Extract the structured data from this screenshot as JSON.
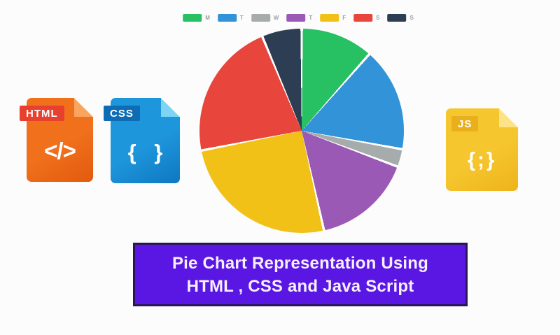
{
  "banner": {
    "line1": "Pie Chart Representation Using",
    "line2": "HTML , CSS and Java Script",
    "background": "#5a17e4",
    "border_color": "#2a1657",
    "text_color": "#f6f0fd"
  },
  "file_icons": [
    {
      "id": "html",
      "badge": "HTML",
      "glyph": "</>",
      "body_color": "#f0701c",
      "body_dark": "#e25a0e",
      "fold_color": "#f9a55e",
      "badge_color": "#e8402e",
      "badge_text_color": "#ffffff"
    },
    {
      "id": "css",
      "badge": "CSS",
      "glyph": "{ }",
      "body_color": "#1e96dc",
      "body_dark": "#0e77c0",
      "fold_color": "#7fd4f4",
      "badge_color": "#0d6cb4",
      "badge_text_color": "#ffffff"
    },
    {
      "id": "js",
      "badge": "JS",
      "glyph": "{;}",
      "body_color": "#f6c62f",
      "body_dark": "#eeb31b",
      "fold_color": "#fce388",
      "badge_color": "#e9af1d",
      "badge_text_color": "#ffffff"
    }
  ],
  "chart_data": {
    "type": "pie",
    "categories": [
      "M",
      "T",
      "W",
      "T",
      "F",
      "S",
      "S"
    ],
    "values": [
      11.5,
      16.4,
      2.8,
      15.8,
      25.4,
      21.8,
      6.3
    ],
    "colors": [
      "#27c062",
      "#3293d8",
      "#a6acac",
      "#9b59b6",
      "#f2c118",
      "#e8453c",
      "#2d3e54"
    ],
    "title": "",
    "legend_position": "top",
    "start_angle_deg": 0,
    "separator_color": "#ffffff",
    "legend_label_color": "#9aa0a6",
    "page_background": "#fcfcfc"
  }
}
